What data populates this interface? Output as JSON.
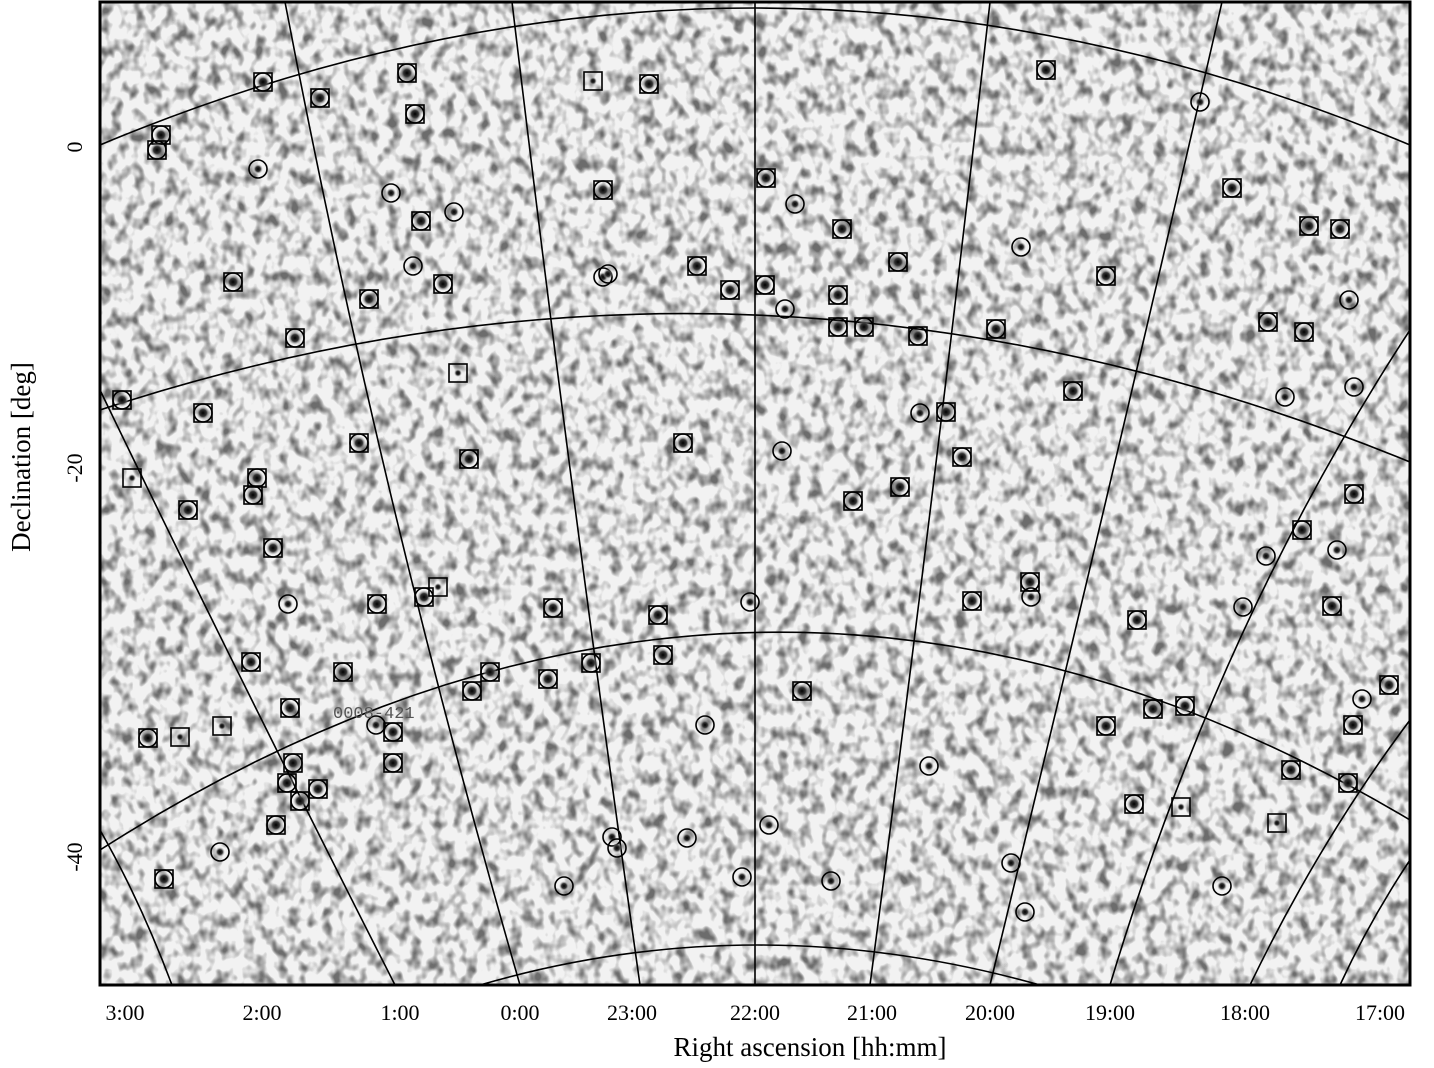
{
  "axes": {
    "x_label": "Right ascension [hh:mm]",
    "y_label": "Declination [deg]",
    "x_ticks": [
      "3:00",
      "2:00",
      "1:00",
      "0:00",
      "23:00",
      "22:00",
      "21:00",
      "20:00",
      "19:00",
      "18:00",
      "17:00"
    ],
    "y_ticks": [
      "0",
      "-20",
      "-40"
    ]
  },
  "annotation": "0008-421"
}
